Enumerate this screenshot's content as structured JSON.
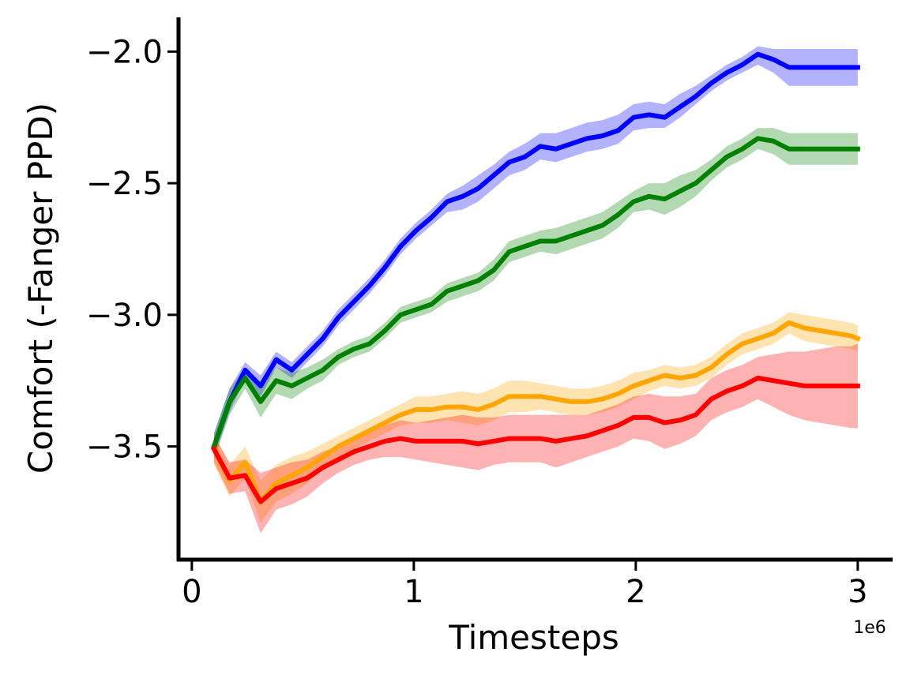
{
  "chart_data": {
    "type": "line",
    "xlabel": "Timesteps",
    "ylabel": "Comfort (-Fanger PPD)",
    "x_offset_label": "1e6",
    "xlim": [
      -0.06,
      3.15
    ],
    "ylim": [
      -3.93,
      -1.87
    ],
    "xticks": [
      0,
      1,
      2,
      3
    ],
    "xtick_labels": [
      "0",
      "1",
      "2",
      "3"
    ],
    "yticks": [
      -2.0,
      -2.5,
      -3.0,
      -3.5
    ],
    "ytick_labels": [
      "−2.0",
      "−2.5",
      "−3.0",
      "−3.5"
    ],
    "grid": false,
    "x": [
      0.1,
      0.17,
      0.24,
      0.31,
      0.38,
      0.45,
      0.52,
      0.59,
      0.66,
      0.73,
      0.8,
      0.87,
      0.94,
      1.01,
      1.08,
      1.15,
      1.22,
      1.29,
      1.36,
      1.43,
      1.5,
      1.57,
      1.64,
      1.71,
      1.78,
      1.85,
      1.92,
      1.99,
      2.06,
      2.13,
      2.2,
      2.27,
      2.34,
      2.41,
      2.48,
      2.55,
      2.62,
      2.69,
      2.76,
      2.83,
      2.9,
      2.97,
      3.0
    ],
    "series": [
      {
        "color": "#0000ff",
        "band_color": "#0000ff",
        "values": [
          -3.5,
          -3.33,
          -3.21,
          -3.27,
          -3.17,
          -3.21,
          -3.15,
          -3.09,
          -3.01,
          -2.95,
          -2.89,
          -2.82,
          -2.74,
          -2.68,
          -2.63,
          -2.57,
          -2.55,
          -2.52,
          -2.47,
          -2.42,
          -2.4,
          -2.36,
          -2.37,
          -2.35,
          -2.33,
          -2.32,
          -2.3,
          -2.25,
          -2.24,
          -2.25,
          -2.21,
          -2.17,
          -2.12,
          -2.08,
          -2.05,
          -2.01,
          -2.03,
          -2.06,
          -2.06,
          -2.06,
          -2.06,
          -2.06,
          -2.06
        ],
        "lower": [
          -3.54,
          -3.37,
          -3.24,
          -3.31,
          -3.2,
          -3.24,
          -3.18,
          -3.12,
          -3.04,
          -2.98,
          -2.92,
          -2.85,
          -2.77,
          -2.71,
          -2.66,
          -2.61,
          -2.6,
          -2.57,
          -2.52,
          -2.47,
          -2.45,
          -2.41,
          -2.42,
          -2.4,
          -2.38,
          -2.37,
          -2.35,
          -2.3,
          -2.29,
          -2.29,
          -2.25,
          -2.2,
          -2.15,
          -2.11,
          -2.08,
          -2.05,
          -2.08,
          -2.13,
          -2.13,
          -2.13,
          -2.13,
          -2.13,
          -2.13
        ],
        "upper": [
          -3.45,
          -3.28,
          -3.18,
          -3.23,
          -3.14,
          -3.18,
          -3.12,
          -3.06,
          -2.98,
          -2.92,
          -2.86,
          -2.79,
          -2.71,
          -2.65,
          -2.6,
          -2.54,
          -2.51,
          -2.47,
          -2.43,
          -2.38,
          -2.35,
          -2.31,
          -2.31,
          -2.29,
          -2.27,
          -2.26,
          -2.24,
          -2.2,
          -2.19,
          -2.2,
          -2.16,
          -2.13,
          -2.09,
          -2.05,
          -2.02,
          -1.98,
          -1.99,
          -1.99,
          -1.99,
          -1.99,
          -1.99,
          -1.99,
          -1.99
        ]
      },
      {
        "color": "#008000",
        "band_color": "#008000",
        "values": [
          -3.5,
          -3.33,
          -3.24,
          -3.33,
          -3.25,
          -3.27,
          -3.24,
          -3.21,
          -3.16,
          -3.13,
          -3.11,
          -3.06,
          -3.0,
          -2.98,
          -2.96,
          -2.91,
          -2.89,
          -2.87,
          -2.83,
          -2.76,
          -2.74,
          -2.72,
          -2.72,
          -2.7,
          -2.68,
          -2.66,
          -2.62,
          -2.57,
          -2.55,
          -2.56,
          -2.53,
          -2.5,
          -2.45,
          -2.4,
          -2.37,
          -2.33,
          -2.34,
          -2.37,
          -2.37,
          -2.37,
          -2.37,
          -2.37,
          -2.37
        ],
        "lower": [
          -3.55,
          -3.38,
          -3.28,
          -3.39,
          -3.3,
          -3.32,
          -3.28,
          -3.25,
          -3.19,
          -3.16,
          -3.14,
          -3.09,
          -3.03,
          -3.01,
          -2.99,
          -2.95,
          -2.93,
          -2.91,
          -2.87,
          -2.8,
          -2.78,
          -2.76,
          -2.77,
          -2.75,
          -2.73,
          -2.71,
          -2.67,
          -2.61,
          -2.6,
          -2.62,
          -2.59,
          -2.55,
          -2.49,
          -2.44,
          -2.41,
          -2.37,
          -2.39,
          -2.43,
          -2.43,
          -2.43,
          -2.43,
          -2.43,
          -2.43
        ],
        "upper": [
          -3.45,
          -3.28,
          -3.2,
          -3.27,
          -3.2,
          -3.22,
          -3.2,
          -3.17,
          -3.13,
          -3.1,
          -3.08,
          -3.03,
          -2.97,
          -2.95,
          -2.93,
          -2.88,
          -2.86,
          -2.84,
          -2.79,
          -2.72,
          -2.7,
          -2.68,
          -2.67,
          -2.65,
          -2.63,
          -2.61,
          -2.57,
          -2.53,
          -2.5,
          -2.5,
          -2.47,
          -2.45,
          -2.41,
          -2.36,
          -2.33,
          -2.29,
          -2.29,
          -2.31,
          -2.31,
          -2.31,
          -2.31,
          -2.31,
          -2.31
        ]
      },
      {
        "color": "#ffa500",
        "band_color": "#ffa500",
        "values": [
          -3.51,
          -3.63,
          -3.56,
          -3.71,
          -3.64,
          -3.61,
          -3.58,
          -3.54,
          -3.5,
          -3.47,
          -3.44,
          -3.41,
          -3.38,
          -3.36,
          -3.36,
          -3.35,
          -3.35,
          -3.36,
          -3.34,
          -3.31,
          -3.31,
          -3.31,
          -3.32,
          -3.33,
          -3.33,
          -3.32,
          -3.3,
          -3.27,
          -3.25,
          -3.23,
          -3.24,
          -3.23,
          -3.2,
          -3.15,
          -3.11,
          -3.09,
          -3.07,
          -3.03,
          -3.05,
          -3.06,
          -3.07,
          -3.08,
          -3.09
        ],
        "lower": [
          -3.57,
          -3.69,
          -3.62,
          -3.79,
          -3.71,
          -3.68,
          -3.64,
          -3.59,
          -3.54,
          -3.51,
          -3.48,
          -3.45,
          -3.42,
          -3.41,
          -3.41,
          -3.4,
          -3.41,
          -3.42,
          -3.4,
          -3.37,
          -3.37,
          -3.36,
          -3.37,
          -3.38,
          -3.38,
          -3.37,
          -3.35,
          -3.32,
          -3.29,
          -3.27,
          -3.28,
          -3.27,
          -3.24,
          -3.19,
          -3.15,
          -3.13,
          -3.11,
          -3.07,
          -3.1,
          -3.11,
          -3.12,
          -3.13,
          -3.14
        ],
        "upper": [
          -3.45,
          -3.57,
          -3.5,
          -3.63,
          -3.57,
          -3.54,
          -3.52,
          -3.49,
          -3.46,
          -3.43,
          -3.4,
          -3.37,
          -3.34,
          -3.31,
          -3.31,
          -3.3,
          -3.29,
          -3.3,
          -3.28,
          -3.25,
          -3.25,
          -3.26,
          -3.27,
          -3.28,
          -3.28,
          -3.27,
          -3.25,
          -3.22,
          -3.21,
          -3.19,
          -3.2,
          -3.19,
          -3.16,
          -3.11,
          -3.07,
          -3.05,
          -3.03,
          -2.99,
          -3.0,
          -3.01,
          -3.02,
          -3.03,
          -3.04
        ]
      },
      {
        "color": "#ff0000",
        "band_color": "#ff0000",
        "values": [
          -3.51,
          -3.62,
          -3.61,
          -3.71,
          -3.66,
          -3.64,
          -3.62,
          -3.58,
          -3.55,
          -3.52,
          -3.5,
          -3.48,
          -3.47,
          -3.48,
          -3.48,
          -3.48,
          -3.48,
          -3.49,
          -3.48,
          -3.47,
          -3.47,
          -3.47,
          -3.48,
          -3.47,
          -3.46,
          -3.44,
          -3.42,
          -3.39,
          -3.39,
          -3.41,
          -3.4,
          -3.38,
          -3.32,
          -3.29,
          -3.27,
          -3.24,
          -3.25,
          -3.26,
          -3.27,
          -3.27,
          -3.27,
          -3.27,
          -3.27
        ],
        "lower": [
          -3.56,
          -3.68,
          -3.67,
          -3.83,
          -3.74,
          -3.72,
          -3.69,
          -3.64,
          -3.6,
          -3.57,
          -3.55,
          -3.54,
          -3.54,
          -3.55,
          -3.56,
          -3.57,
          -3.58,
          -3.59,
          -3.57,
          -3.56,
          -3.56,
          -3.56,
          -3.58,
          -3.56,
          -3.54,
          -3.52,
          -3.5,
          -3.47,
          -3.48,
          -3.51,
          -3.49,
          -3.46,
          -3.4,
          -3.37,
          -3.35,
          -3.32,
          -3.35,
          -3.38,
          -3.4,
          -3.41,
          -3.42,
          -3.43,
          -3.43
        ],
        "upper": [
          -3.46,
          -3.56,
          -3.55,
          -3.6,
          -3.58,
          -3.56,
          -3.55,
          -3.52,
          -3.5,
          -3.47,
          -3.45,
          -3.42,
          -3.4,
          -3.41,
          -3.4,
          -3.39,
          -3.38,
          -3.39,
          -3.39,
          -3.38,
          -3.38,
          -3.38,
          -3.38,
          -3.38,
          -3.38,
          -3.36,
          -3.34,
          -3.31,
          -3.3,
          -3.31,
          -3.31,
          -3.3,
          -3.24,
          -3.21,
          -3.19,
          -3.16,
          -3.15,
          -3.14,
          -3.14,
          -3.13,
          -3.12,
          -3.12,
          -3.11
        ]
      }
    ]
  }
}
